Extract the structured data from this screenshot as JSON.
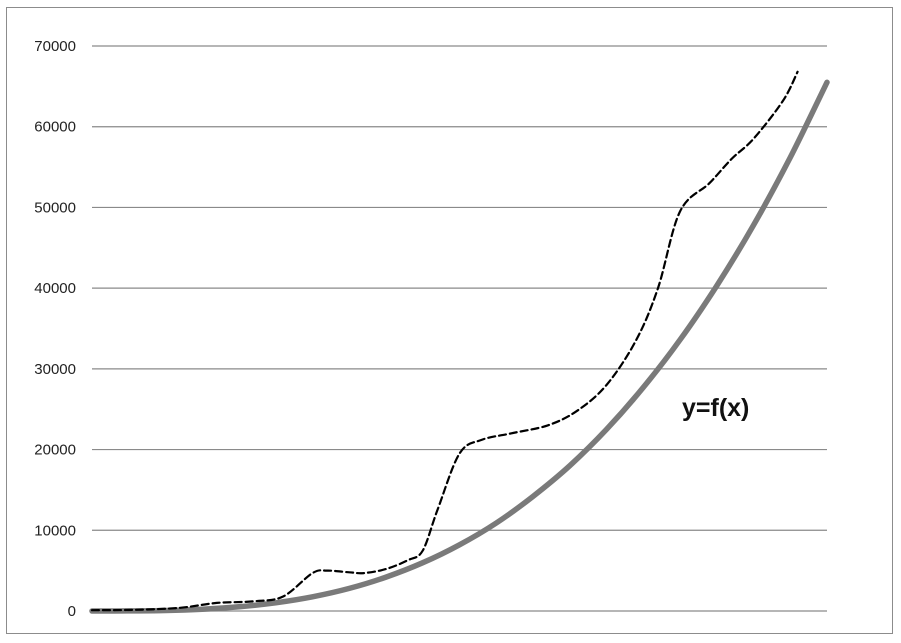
{
  "chart_data": {
    "type": "line",
    "title": "",
    "xlabel": "",
    "ylabel": "",
    "ylim": [
      0,
      70000
    ],
    "xlim": [
      0,
      100
    ],
    "yticks": [
      {
        "value": 0,
        "label": "0"
      },
      {
        "value": 10000,
        "label": "10000"
      },
      {
        "value": 20000,
        "label": "20000"
      },
      {
        "value": 30000,
        "label": "30000"
      },
      {
        "value": 40000,
        "label": "40000"
      },
      {
        "value": 50000,
        "label": "50000"
      },
      {
        "value": 60000,
        "label": "60000"
      },
      {
        "value": 70000,
        "label": "70000"
      }
    ],
    "grid": true,
    "annotation": "y=f(x)",
    "series": [
      {
        "style": "solid-thick",
        "color": "#7a7a7a",
        "x": [
          0,
          5,
          10,
          15,
          20,
          25,
          30,
          35,
          40,
          45,
          50,
          55,
          60,
          65,
          70,
          75,
          80,
          85,
          90,
          95,
          100
        ],
        "y": [
          0,
          8,
          65,
          220,
          520,
          1020,
          1760,
          2800,
          4200,
          5980,
          8200,
          10900,
          14200,
          18000,
          22500,
          27700,
          33600,
          40300,
          47800,
          56200,
          65500
        ]
      },
      {
        "style": "dashed",
        "color": "#000000",
        "x": [
          0,
          6,
          12,
          17,
          22,
          26,
          30,
          32,
          35,
          37,
          40,
          43,
          45,
          47,
          50,
          53,
          57,
          62,
          66,
          70,
          74,
          77,
          80,
          84,
          87,
          90,
          94,
          96
        ],
        "y": [
          100,
          150,
          400,
          1000,
          1200,
          1800,
          4700,
          5000,
          4800,
          4700,
          5200,
          6300,
          7500,
          12500,
          19500,
          21200,
          22000,
          23000,
          24800,
          28000,
          33500,
          40000,
          49500,
          53000,
          56000,
          58500,
          63200,
          66800
        ]
      }
    ]
  }
}
